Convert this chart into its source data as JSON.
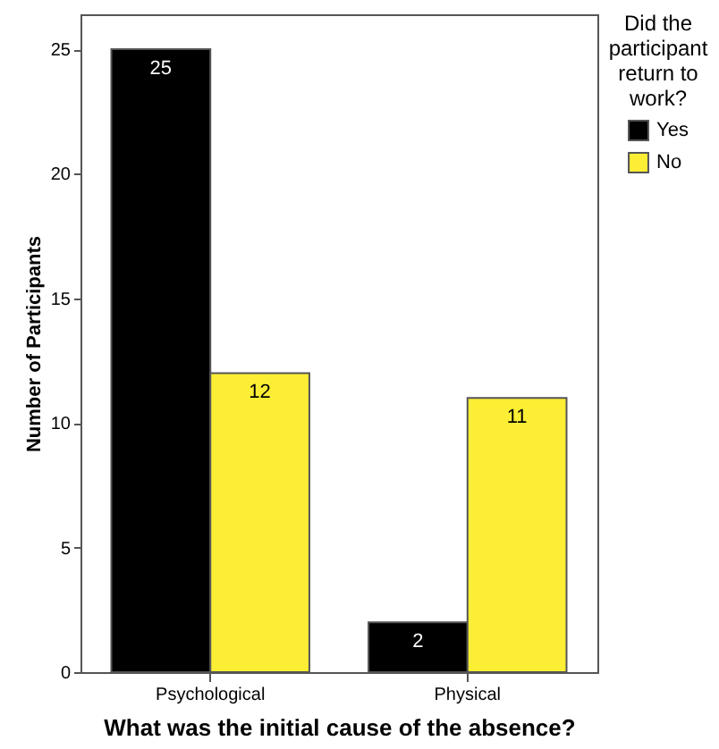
{
  "chart_data": {
    "type": "bar",
    "xlabel": "What was the initial cause of the absence?",
    "ylabel": "Number of Participants",
    "legend_title": "Did the participant return to work?",
    "categories": [
      "Psychological",
      "Physical"
    ],
    "series": [
      {
        "name": "Yes",
        "color": "#000000",
        "values": [
          25,
          2
        ]
      },
      {
        "name": "No",
        "color": "#fbee35",
        "values": [
          12,
          11
        ]
      }
    ],
    "ylim": [
      0,
      26.4
    ],
    "yticks": [
      0,
      5,
      10,
      15,
      20,
      25
    ],
    "data_labels": true,
    "legend": "right",
    "grid": false
  }
}
